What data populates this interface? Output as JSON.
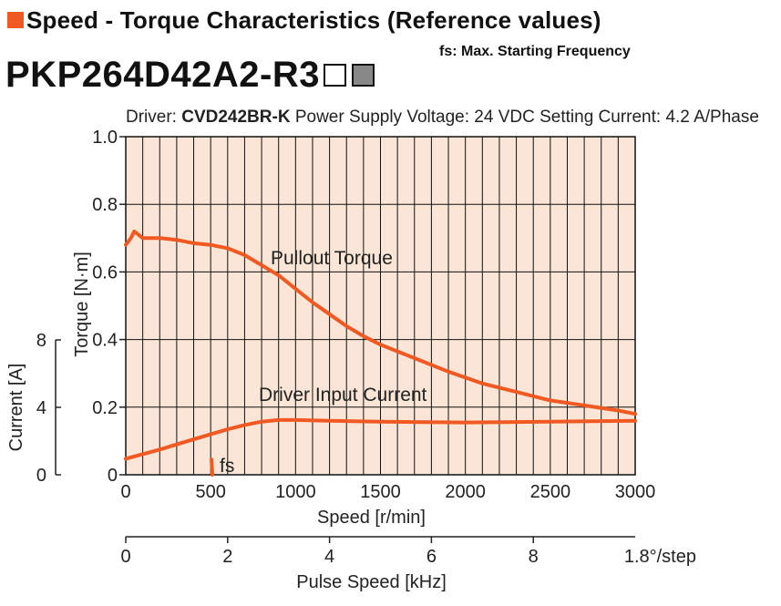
{
  "header": {
    "title": "Speed - Torque Characteristics (Reference values)",
    "note": "fs: Max. Starting Frequency"
  },
  "model": {
    "name": "PKP264D42A2-R3"
  },
  "conditions": {
    "driver_label": "Driver:",
    "driver_model": "CVD242BR-K",
    "voltage_text": "Power Supply Voltage: 24 VDC",
    "current_text": "Setting Current: 4.2 A/Phase"
  },
  "colors": {
    "curve": "#f05a22",
    "plot_bg": "#fbe5d6",
    "grid": "#111111"
  },
  "chart_data": {
    "type": "line",
    "x": {
      "label": "Speed [r/min]",
      "range": [
        0,
        3000
      ],
      "ticks": [
        "0",
        "500",
        "1000",
        "1500",
        "2000",
        "2500",
        "3000"
      ],
      "minor_grid_step": 100
    },
    "x2": {
      "label": "Pulse Speed [kHz]",
      "range": [
        0,
        10
      ],
      "ticks": [
        "0",
        "2",
        "4",
        "6",
        "8"
      ],
      "note": "1.8°/step"
    },
    "y_left_torque": {
      "label": "Torque [N·m]",
      "range": [
        0,
        1.0
      ],
      "ticks": [
        "0",
        "0.2",
        "0.4",
        "0.6",
        "0.8",
        "1.0"
      ]
    },
    "y_left_current": {
      "label": "Current [A]",
      "range": [
        0,
        8
      ],
      "ticks": [
        "0",
        "4",
        "8"
      ]
    },
    "grid": true,
    "series": [
      {
        "name": "Pullout Torque",
        "axis": "torque",
        "points": [
          [
            0,
            0.68
          ],
          [
            30,
            0.7
          ],
          [
            50,
            0.72
          ],
          [
            75,
            0.71
          ],
          [
            100,
            0.7
          ],
          [
            150,
            0.7
          ],
          [
            200,
            0.7
          ],
          [
            300,
            0.695
          ],
          [
            400,
            0.685
          ],
          [
            500,
            0.68
          ],
          [
            600,
            0.67
          ],
          [
            700,
            0.65
          ],
          [
            800,
            0.62
          ],
          [
            900,
            0.59
          ],
          [
            1000,
            0.55
          ],
          [
            1100,
            0.51
          ],
          [
            1200,
            0.475
          ],
          [
            1300,
            0.44
          ],
          [
            1400,
            0.41
          ],
          [
            1500,
            0.385
          ],
          [
            1700,
            0.345
          ],
          [
            1900,
            0.305
          ],
          [
            2100,
            0.27
          ],
          [
            2300,
            0.245
          ],
          [
            2500,
            0.22
          ],
          [
            2700,
            0.205
          ],
          [
            2900,
            0.19
          ],
          [
            3000,
            0.18
          ]
        ]
      },
      {
        "name": "Driver Input Current",
        "axis": "current",
        "points": [
          [
            0,
            0.95
          ],
          [
            200,
            1.5
          ],
          [
            400,
            2.1
          ],
          [
            500,
            2.4
          ],
          [
            600,
            2.7
          ],
          [
            700,
            2.95
          ],
          [
            800,
            3.15
          ],
          [
            900,
            3.25
          ],
          [
            1000,
            3.25
          ],
          [
            1200,
            3.2
          ],
          [
            1500,
            3.15
          ],
          [
            2000,
            3.1
          ],
          [
            2500,
            3.15
          ],
          [
            3000,
            3.2
          ]
        ]
      },
      {
        "name": "fs",
        "axis": "torque",
        "points": [
          [
            510,
            0.0
          ],
          [
            505,
            0.045
          ]
        ]
      }
    ],
    "annotations": [
      "Pullout Torque",
      "Driver Input Current",
      "fs"
    ]
  }
}
